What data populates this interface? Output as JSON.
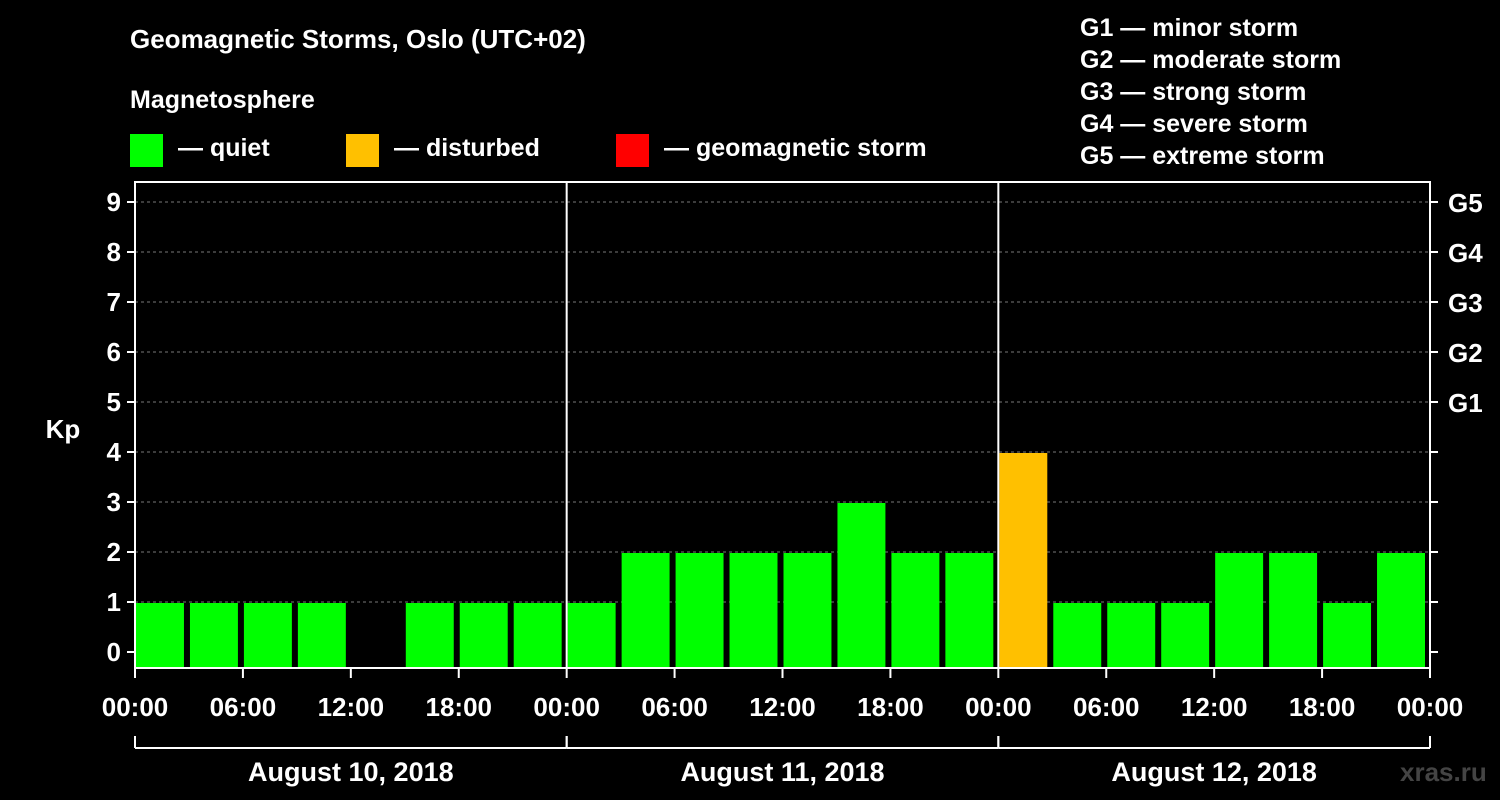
{
  "title": "Geomagnetic Storms, Oslo (UTC+02)",
  "magnetosphere": {
    "label": "Magnetosphere",
    "legend": [
      {
        "label": "— quiet",
        "color": "#00ff00"
      },
      {
        "label": "— disturbed",
        "color": "#ffc000"
      },
      {
        "label": "— geomagnetic storm",
        "color": "#ff0000"
      }
    ]
  },
  "storm_legend": [
    "G1 — minor storm",
    "G2 — moderate storm",
    "G3 — strong storm",
    "G4 — severe storm",
    "G5 — extreme storm"
  ],
  "watermark": "xras.ru",
  "chart_data": {
    "type": "bar",
    "ylabel": "Kp",
    "ylim": [
      0,
      9
    ],
    "y_ticks": [
      0,
      1,
      2,
      3,
      4,
      5,
      6,
      7,
      8,
      9
    ],
    "right_axis": [
      {
        "kp": 5,
        "label": "G1"
      },
      {
        "kp": 6,
        "label": "G2"
      },
      {
        "kp": 7,
        "label": "G3"
      },
      {
        "kp": 8,
        "label": "G4"
      },
      {
        "kp": 9,
        "label": "G5"
      }
    ],
    "x_tick_labels": [
      "00:00",
      "06:00",
      "12:00",
      "18:00",
      "00:00",
      "06:00",
      "12:00",
      "18:00",
      "00:00",
      "06:00",
      "12:00",
      "18:00",
      "00:00"
    ],
    "days": [
      "August 10, 2018",
      "August 11, 2018",
      "August 12, 2018"
    ],
    "bar_interval_hours": 3,
    "values": [
      1,
      1,
      1,
      1,
      0,
      1,
      1,
      1,
      1,
      2,
      2,
      2,
      2,
      3,
      2,
      2,
      4,
      1,
      1,
      1,
      2,
      2,
      1,
      2
    ],
    "status": [
      "quiet",
      "quiet",
      "quiet",
      "quiet",
      "quiet",
      "quiet",
      "quiet",
      "quiet",
      "quiet",
      "quiet",
      "quiet",
      "quiet",
      "quiet",
      "quiet",
      "quiet",
      "quiet",
      "disturbed",
      "quiet",
      "quiet",
      "quiet",
      "quiet",
      "quiet",
      "quiet",
      "quiet"
    ],
    "grid": true
  }
}
